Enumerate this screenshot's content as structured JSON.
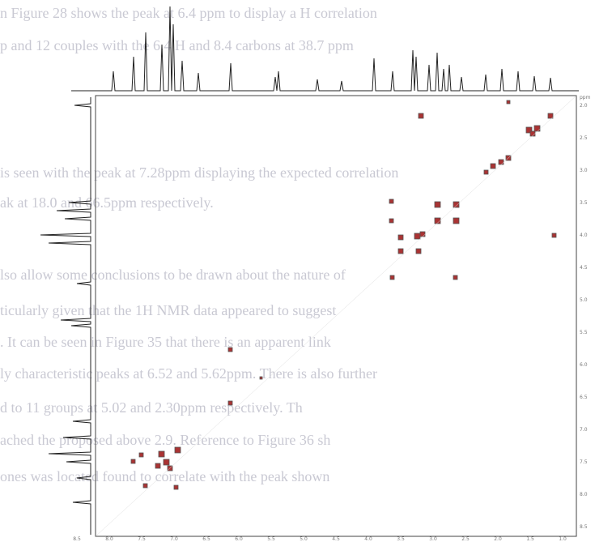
{
  "page": {
    "text_lines": [
      "n Figure 28 shows the peak at 6.4 ppm to display a H correlation",
      "p and 12 couples with the 6.4 H and 8.4 carbons at 38.7 ppm",
      "is seen with the peak at 7.28ppm displaying the expected correlation",
      "ak at 18.0 and 66.5ppm respectively.",
      "lso allow some conclusions to be drawn about the nature of",
      "ticularly given that the 1H NMR data appeared to suggest",
      ". It can be seen in Figure 35 that there is an apparent link",
      "ly characteristic peaks at 6.52 and 5.62ppm.  There is also further",
      "d to 11 groups at 5.02 and 2.30ppm respectively.  Th",
      "ached the proposed above 2.9.  Reference to Figure 36 sh",
      "ones was located found to correlate with the peak shown"
    ],
    "spectrum": {
      "x_axis_labels": [
        "8.5",
        "8.0",
        "7.5",
        "7.0",
        "6.5",
        "6.0",
        "5.5",
        "5.0",
        "4.5",
        "4.0",
        "3.5",
        "3.0",
        "2.5",
        "2.0",
        "1.5",
        "1.0"
      ],
      "y_axis_labels": [
        "2.0",
        "2.5",
        "3.0",
        "3.5",
        "4.0",
        "4.5",
        "5.0",
        "5.5",
        "6.0",
        "6.5",
        "7.0",
        "7.5",
        "8.0",
        "8.5"
      ],
      "unit": "ppm"
    }
  }
}
